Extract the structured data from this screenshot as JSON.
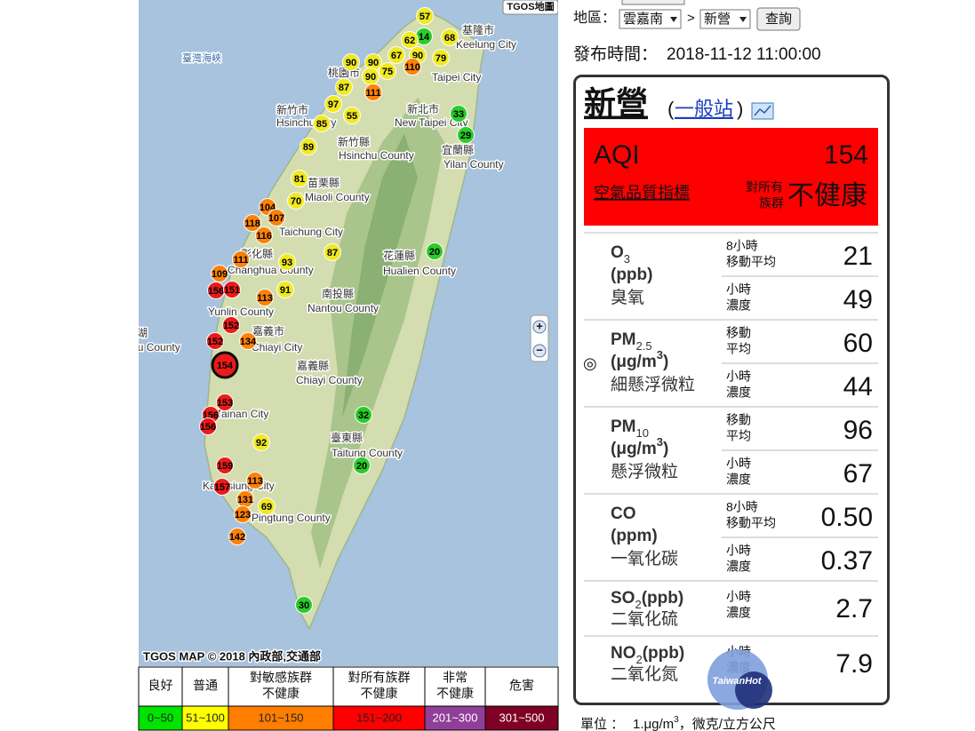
{
  "toolbar": {
    "region_label": "地區：",
    "region": "雲嘉南",
    "separator": ">",
    "station": "新營",
    "query_button": "查詢"
  },
  "publish": {
    "label": "發布時間：",
    "time": "2018-11-12 11:00:00"
  },
  "map": {
    "logo": "TGOS地圖",
    "copyright": "TGOS MAP © 2018 內政部,交通部",
    "zoom_in": "+",
    "zoom_out": "−",
    "places": [
      "臺灣海峽",
      "基隆市",
      "Keelung City",
      "桃園市",
      "Taipei City",
      "新北市",
      "New Taipei City",
      "新竹市",
      "Hsinchu City",
      "新竹縣",
      "Hsinchu County",
      "宜蘭縣",
      "Yilan County",
      "苗栗縣",
      "Miaoli County",
      "Taichung City",
      "彰化縣",
      "Changhua County",
      "花蓮縣",
      "Hualien County",
      "南投縣",
      "Nantou County",
      "Yunlin County",
      "嘉義市",
      "Chiayi City",
      "嘉義縣",
      "Chiayi County",
      "澎湖",
      "Penghu County",
      "Tainan City",
      "臺東縣",
      "Taitung County",
      "Kaohsiung City",
      "Pingtung County"
    ],
    "stations": [
      {
        "value": 57,
        "color": "#f2ea1a"
      },
      {
        "value": 14,
        "color": "#22cc22"
      },
      {
        "value": 62,
        "color": "#f2ea1a"
      },
      {
        "value": 68,
        "color": "#f2ea1a"
      },
      {
        "value": 90,
        "color": "#f2ea1a"
      },
      {
        "value": 90,
        "color": "#f2ea1a"
      },
      {
        "value": 67,
        "color": "#f2ea1a"
      },
      {
        "value": 75,
        "color": "#f2ea1a"
      },
      {
        "value": 90,
        "color": "#f2ea1a"
      },
      {
        "value": 110,
        "color": "#ff7e00"
      },
      {
        "value": 79,
        "color": "#f2ea1a"
      },
      {
        "value": 87,
        "color": "#f2ea1a"
      },
      {
        "value": 90,
        "color": "#f2ea1a"
      },
      {
        "value": 111,
        "color": "#ff7e00"
      },
      {
        "value": 97,
        "color": "#f2ea1a"
      },
      {
        "value": 55,
        "color": "#f2ea1a"
      },
      {
        "value": 33,
        "color": "#22cc22"
      },
      {
        "value": 85,
        "color": "#f2ea1a"
      },
      {
        "value": 29,
        "color": "#22cc22"
      },
      {
        "value": 89,
        "color": "#f2ea1a"
      },
      {
        "value": 81,
        "color": "#f2ea1a"
      },
      {
        "value": 70,
        "color": "#f2ea1a"
      },
      {
        "value": 104,
        "color": "#ff7e00"
      },
      {
        "value": 107,
        "color": "#ff7e00"
      },
      {
        "value": 118,
        "color": "#ff7e00"
      },
      {
        "value": 116,
        "color": "#ff7e00"
      },
      {
        "value": 111,
        "color": "#ff7e00"
      },
      {
        "value": 93,
        "color": "#f2ea1a"
      },
      {
        "value": 87,
        "color": "#f2ea1a"
      },
      {
        "value": 20,
        "color": "#22cc22"
      },
      {
        "value": 109,
        "color": "#ff7e00"
      },
      {
        "value": 156,
        "color": "#ee1111"
      },
      {
        "value": 151,
        "color": "#ee1111"
      },
      {
        "value": 113,
        "color": "#ff7e00"
      },
      {
        "value": 91,
        "color": "#f2ea1a"
      },
      {
        "value": 152,
        "color": "#ee1111"
      },
      {
        "value": 134,
        "color": "#ff7e00"
      },
      {
        "value": 152,
        "color": "#ee1111"
      },
      {
        "value": 154,
        "color": "#ee1111",
        "selected": true
      },
      {
        "value": 153,
        "color": "#ee1111"
      },
      {
        "value": 156,
        "color": "#ee1111"
      },
      {
        "value": 156,
        "color": "#ee1111"
      },
      {
        "value": 92,
        "color": "#f2ea1a"
      },
      {
        "value": 32,
        "color": "#22cc22"
      },
      {
        "value": 20,
        "color": "#22cc22"
      },
      {
        "value": 159,
        "color": "#ee1111"
      },
      {
        "value": 113,
        "color": "#ff7e00"
      },
      {
        "value": 157,
        "color": "#ee1111"
      },
      {
        "value": 131,
        "color": "#ff7e00"
      },
      {
        "value": 69,
        "color": "#f2ea1a"
      },
      {
        "value": 123,
        "color": "#ff7e00"
      },
      {
        "value": 142,
        "color": "#ff7e00"
      },
      {
        "value": 30,
        "color": "#22cc22"
      }
    ]
  },
  "legend": {
    "levels": [
      {
        "lines": [
          "良好"
        ],
        "range": "0~50",
        "color": "#00e400"
      },
      {
        "lines": [
          "普通"
        ],
        "range": "51~100",
        "color": "#ffff00"
      },
      {
        "lines": [
          "對敏感族群",
          "不健康"
        ],
        "range": "101~150",
        "color": "#ff7e00"
      },
      {
        "lines": [
          "對所有族群",
          "不健康"
        ],
        "range": "151~200",
        "color": "#ff0000"
      },
      {
        "lines": [
          "非常",
          "不健康"
        ],
        "range": "201~300",
        "color": "#8f3f97"
      },
      {
        "lines": [
          "危害"
        ],
        "range": "301~500",
        "color": "#7e0023"
      }
    ]
  },
  "panel": {
    "station": "新營",
    "station_type": "一般站",
    "aqi_label": "AQI",
    "aqi": "154",
    "aqi_link": "空氣品質指標",
    "status_group": [
      "對所有",
      "族群"
    ],
    "status": "不健康",
    "status_color": "#ff0000",
    "pollutants": [
      {
        "name": "O",
        "name_sub": "3",
        "unit": "(ppb)",
        "cn": "臭氧",
        "readings": [
          {
            "label": [
              "8小時",
              "移動平均"
            ],
            "value": "21"
          },
          {
            "label": [
              "小時",
              "濃度"
            ],
            "value": "49"
          }
        ]
      },
      {
        "marker": "◎",
        "name": "PM",
        "name_sub": "2.5",
        "unit": "(μg/m",
        "unit_sup": "3",
        "unit_end": ")",
        "cn": "細懸浮微粒",
        "readings": [
          {
            "label": [
              "移動",
              "平均"
            ],
            "value": "60"
          },
          {
            "label": [
              "小時",
              "濃度"
            ],
            "value": "44"
          }
        ]
      },
      {
        "name": "PM",
        "name_sub": "10",
        "unit": "(μg/m",
        "unit_sup": "3",
        "unit_end": ")",
        "cn": "懸浮微粒",
        "readings": [
          {
            "label": [
              "移動",
              "平均"
            ],
            "value": "96"
          },
          {
            "label": [
              "小時",
              "濃度"
            ],
            "value": "67"
          }
        ]
      },
      {
        "name": "CO",
        "unit": "(ppm)",
        "cn": "一氧化碳",
        "readings": [
          {
            "label": [
              "8小時",
              "移動平均"
            ],
            "value": "0.50"
          },
          {
            "label": [
              "小時",
              "濃度"
            ],
            "value": "0.37"
          }
        ]
      },
      {
        "name": "SO",
        "name_sub": "2",
        "unit": "(ppb)",
        "cn": "二氧化硫",
        "readings": [
          {
            "label": [
              "小時",
              "濃度"
            ],
            "value": "2.7"
          }
        ]
      },
      {
        "name": "NO",
        "name_sub": "2",
        "unit": "(ppb)",
        "cn": "二氧化氮",
        "readings": [
          {
            "label": [
              "小時",
              "濃度"
            ],
            "value": "7.9"
          }
        ]
      }
    ]
  },
  "footer": {
    "unit_label": "單位 ：",
    "unit": "1.μg/m",
    "unit_sup": "3",
    "unit_rest": "，微克/立方公尺"
  },
  "watermark": "TaiwanHot"
}
